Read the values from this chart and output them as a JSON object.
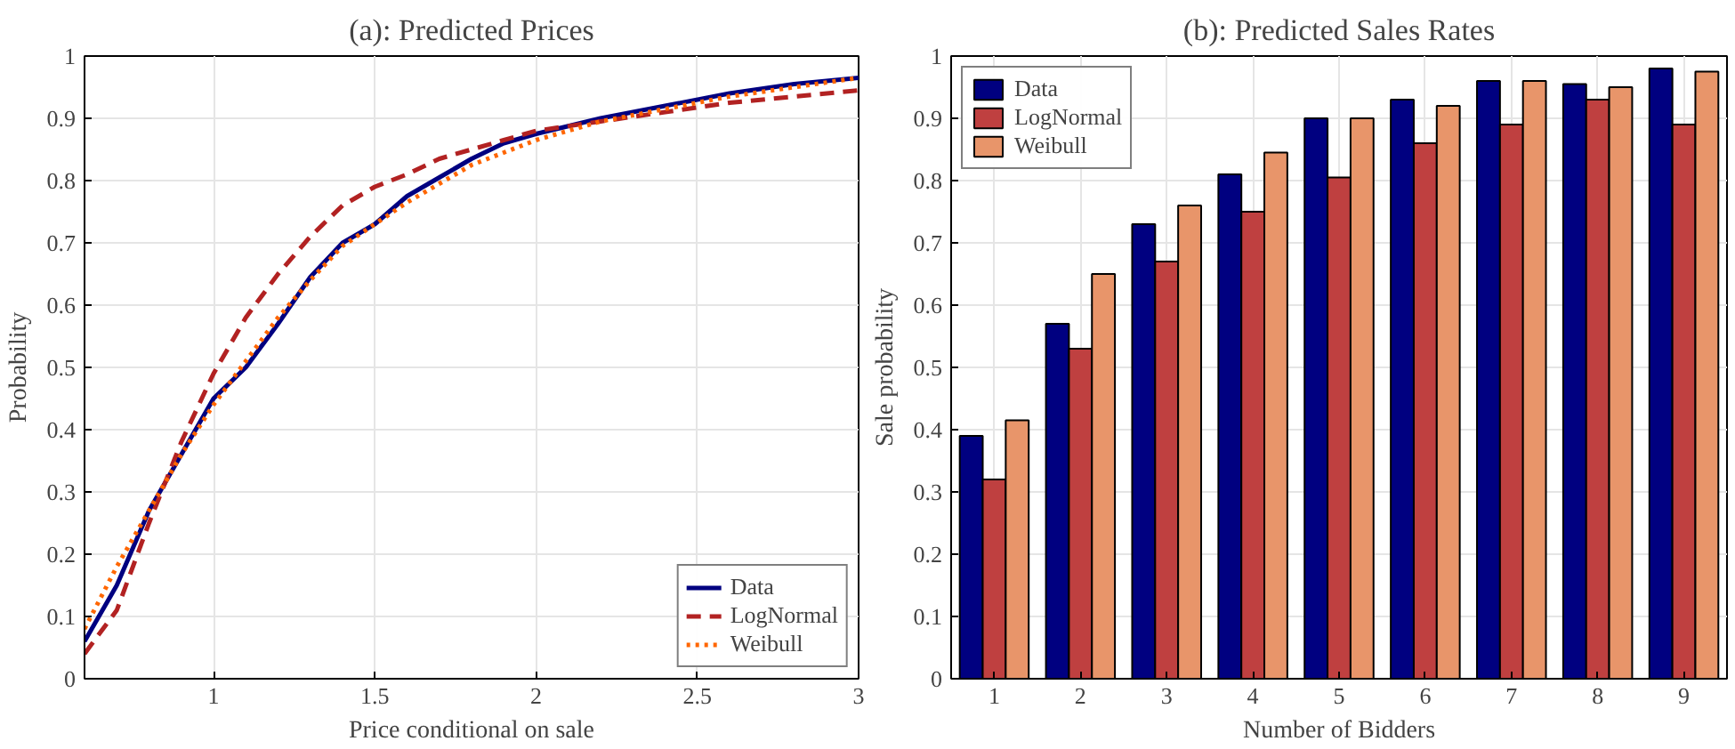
{
  "chart_data": [
    {
      "type": "line",
      "title": "(a): Predicted Prices",
      "xlabel": "Price conditional on sale",
      "ylabel": "Probability",
      "xlim": [
        0.6,
        3
      ],
      "ylim": [
        0,
        1
      ],
      "xticks": [
        1,
        1.5,
        2,
        2.5,
        3
      ],
      "yticks": [
        0,
        0.1,
        0.2,
        0.3,
        0.4,
        0.5,
        0.6,
        0.7,
        0.8,
        0.9,
        1
      ],
      "grid": true,
      "legend": "bottom right",
      "x": [
        0.6,
        0.7,
        0.8,
        0.9,
        1.0,
        1.1,
        1.2,
        1.3,
        1.4,
        1.5,
        1.6,
        1.7,
        1.8,
        1.9,
        2.0,
        2.2,
        2.4,
        2.6,
        2.8,
        3.0
      ],
      "series": [
        {
          "name": "Data",
          "color": "#000080",
          "line_style": "solid",
          "values": [
            0.06,
            0.15,
            0.27,
            0.36,
            0.45,
            0.5,
            0.57,
            0.645,
            0.7,
            0.73,
            0.775,
            0.805,
            0.835,
            0.86,
            0.875,
            0.9,
            0.92,
            0.94,
            0.955,
            0.965
          ]
        },
        {
          "name": "LogNormal",
          "color": "#b22222",
          "line_style": "dashed",
          "values": [
            0.04,
            0.11,
            0.25,
            0.38,
            0.49,
            0.58,
            0.65,
            0.71,
            0.76,
            0.79,
            0.81,
            0.835,
            0.85,
            0.865,
            0.88,
            0.895,
            0.91,
            0.925,
            0.935,
            0.945
          ]
        },
        {
          "name": "Weibull",
          "color": "#ff6600",
          "line_style": "dotted",
          "values": [
            0.08,
            0.18,
            0.27,
            0.36,
            0.44,
            0.51,
            0.58,
            0.64,
            0.695,
            0.73,
            0.765,
            0.795,
            0.825,
            0.845,
            0.865,
            0.895,
            0.915,
            0.935,
            0.95,
            0.965
          ]
        }
      ]
    },
    {
      "type": "bar",
      "title": "(b): Predicted Sales Rates",
      "xlabel": "Number of Bidders",
      "ylabel": "Sale probability",
      "categories": [
        "1",
        "2",
        "3",
        "4",
        "5",
        "6",
        "7",
        "8",
        "9"
      ],
      "ylim": [
        0,
        1
      ],
      "yticks": [
        0,
        0.1,
        0.2,
        0.3,
        0.4,
        0.5,
        0.6,
        0.7,
        0.8,
        0.9,
        1
      ],
      "grid": true,
      "legend": "top left",
      "series": [
        {
          "name": "Data",
          "color": "#000080",
          "values": [
            0.39,
            0.57,
            0.73,
            0.81,
            0.9,
            0.93,
            0.96,
            0.955,
            0.98
          ]
        },
        {
          "name": "LogNormal",
          "color": "#bf4040",
          "values": [
            0.32,
            0.53,
            0.67,
            0.75,
            0.805,
            0.86,
            0.89,
            0.93,
            0.89
          ]
        },
        {
          "name": "Weibull",
          "color": "#e8956a",
          "values": [
            0.415,
            0.65,
            0.76,
            0.845,
            0.9,
            0.92,
            0.96,
            0.95,
            0.975
          ]
        }
      ]
    }
  ]
}
